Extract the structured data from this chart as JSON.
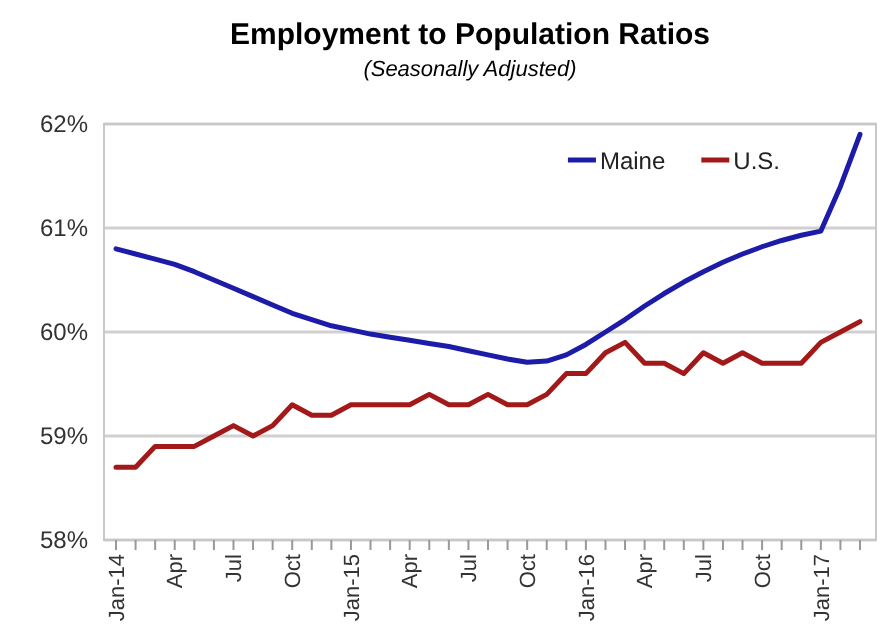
{
  "chart_data": {
    "type": "line",
    "title": "Employment to Population Ratios",
    "subtitle": "(Seasonally Adjusted)",
    "categories": [
      "Jan-14",
      null,
      null,
      "Apr",
      null,
      null,
      "Jul",
      null,
      null,
      "Oct",
      null,
      null,
      "Jan-15",
      null,
      null,
      "Apr",
      null,
      null,
      "Jul",
      null,
      null,
      "Oct",
      null,
      null,
      "Jan-16",
      null,
      null,
      "Apr",
      null,
      null,
      "Jul",
      null,
      null,
      "Oct",
      null,
      null,
      "Jan-17",
      null,
      null
    ],
    "series": [
      {
        "name": "Maine",
        "color": "#1c1ca8",
        "values": [
          60.8,
          60.75,
          60.7,
          60.65,
          60.58,
          60.5,
          60.42,
          60.34,
          60.26,
          60.18,
          60.12,
          60.06,
          60.02,
          59.98,
          59.95,
          59.92,
          59.89,
          59.86,
          59.82,
          59.78,
          59.74,
          59.71,
          59.72,
          59.78,
          59.88,
          60.0,
          60.12,
          60.25,
          60.37,
          60.48,
          60.58,
          60.67,
          60.75,
          60.82,
          60.88,
          60.93,
          60.97,
          61.4,
          61.9
        ]
      },
      {
        "name": "U.S.",
        "color": "#a31818",
        "values": [
          58.7,
          58.7,
          58.9,
          58.9,
          58.9,
          59.0,
          59.1,
          59.0,
          59.1,
          59.3,
          59.2,
          59.2,
          59.3,
          59.3,
          59.3,
          59.3,
          59.4,
          59.3,
          59.3,
          59.4,
          59.3,
          59.3,
          59.4,
          59.6,
          59.6,
          59.8,
          59.9,
          59.7,
          59.7,
          59.6,
          59.8,
          59.7,
          59.8,
          59.7,
          59.7,
          59.7,
          59.9,
          60.0,
          60.1
        ]
      }
    ],
    "ylim": [
      58,
      62
    ],
    "yticks": [
      {
        "value": 58,
        "label": "58%"
      },
      {
        "value": 59,
        "label": "59%"
      },
      {
        "value": 60,
        "label": "60%"
      },
      {
        "value": 61,
        "label": "61%"
      },
      {
        "value": 62,
        "label": "62%"
      }
    ],
    "grid": "y",
    "legend": "top right",
    "marker": "none",
    "line_style": "solid"
  }
}
